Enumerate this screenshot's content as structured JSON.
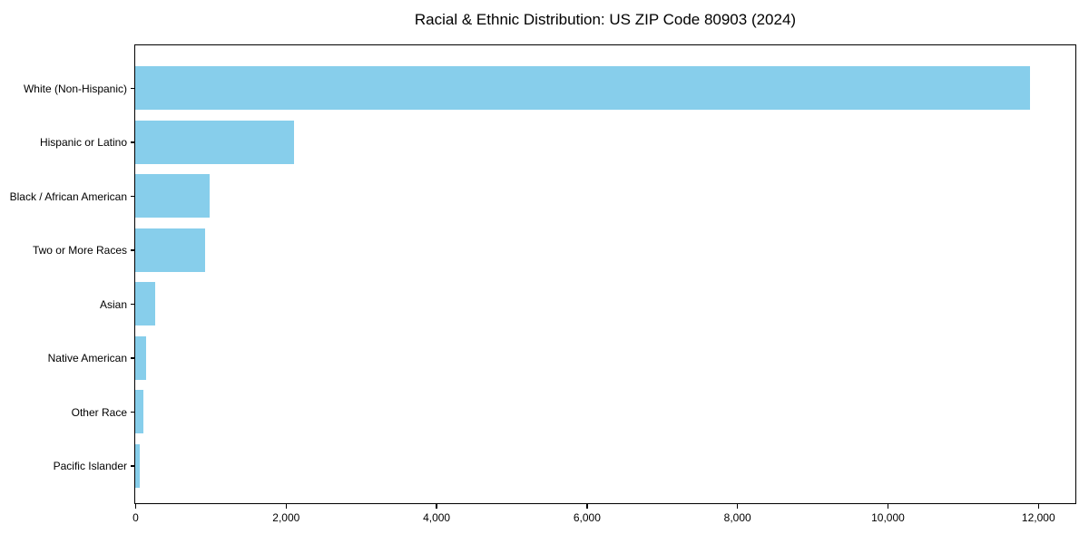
{
  "chart_data": {
    "type": "bar",
    "orientation": "horizontal",
    "title": "Racial & Ethnic Distribution: US ZIP Code 80903 (2024)",
    "categories": [
      "White (Non-Hispanic)",
      "Hispanic or Latino",
      "Black / African American",
      "Two or More Races",
      "Asian",
      "Native American",
      "Other Race",
      "Pacific Islander"
    ],
    "values": [
      11890,
      2110,
      990,
      930,
      265,
      140,
      110,
      55
    ],
    "xlabel": "",
    "ylabel": "",
    "xlim": [
      0,
      12485
    ],
    "x_ticks": [
      0,
      2000,
      4000,
      6000,
      8000,
      10000,
      12000
    ],
    "x_tick_labels": [
      "0",
      "2,000",
      "4,000",
      "6,000",
      "8,000",
      "10,000",
      "12,000"
    ],
    "grid": false,
    "legend": null,
    "bar_color": "#87CEEB",
    "text_color": "#000000",
    "background_color": "#ffffff"
  }
}
